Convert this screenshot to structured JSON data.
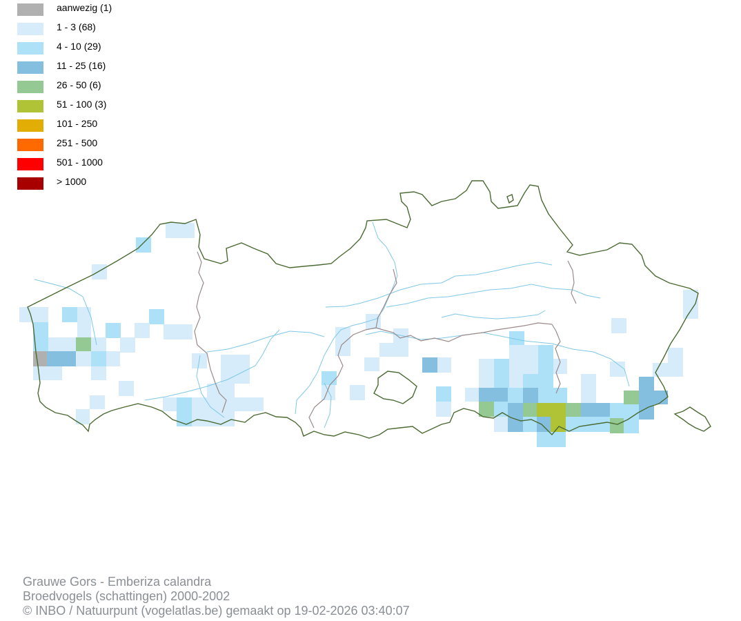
{
  "legend": [
    {
      "label": "aanwezig (1)",
      "color": "#b0b0b0"
    },
    {
      "label": "1 - 3 (68)",
      "color": "#d6ecfb"
    },
    {
      "label": "4 - 10 (29)",
      "color": "#ade1f8"
    },
    {
      "label": "11 - 25 (16)",
      "color": "#85bfe0"
    },
    {
      "label": "26 - 50 (6)",
      "color": "#94c994"
    },
    {
      "label": "51 - 100 (3)",
      "color": "#b0c235"
    },
    {
      "label": "101 - 250",
      "color": "#e2ae05"
    },
    {
      "label": "251 - 500",
      "color": "#ff6a00"
    },
    {
      "label": "501 - 1000",
      "color": "#ff0000"
    },
    {
      "label": "> 1000",
      "color": "#a80000"
    }
  ],
  "footer": {
    "line1": "Grauwe Gors - Emberiza calandra",
    "line2": "Broedvogels (schattingen) 2000-2002",
    "line3": "© INBO / Natuurpunt (vogelatlas.be) gemaakt op 19-02-2026 03:40:07"
  },
  "map": {
    "border_color": "#4a6a32",
    "province_color": "#9a8a8a",
    "river_color": "#7ec8e6"
  }
}
